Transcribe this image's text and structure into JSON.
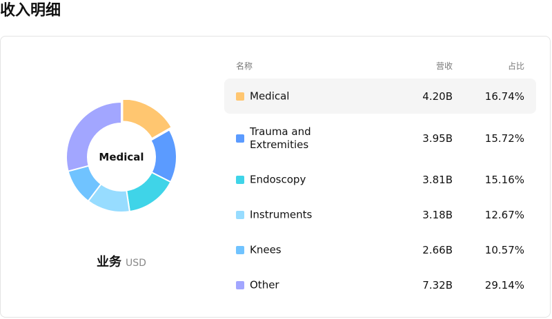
{
  "page_title": "收入明细",
  "segment": {
    "title": "业务",
    "currency": "USD",
    "selected": "Medical"
  },
  "table": {
    "headers": {
      "name": "名称",
      "revenue": "营收",
      "share": "占比"
    },
    "rows": [
      {
        "name": "Medical",
        "revenue": "4.20B",
        "share": "16.74%",
        "color": "#ffc670",
        "pct": 16.74
      },
      {
        "name": "Trauma and Extremities",
        "revenue": "3.95B",
        "share": "15.72%",
        "color": "#5b9bff",
        "pct": 15.72
      },
      {
        "name": "Endoscopy",
        "revenue": "3.81B",
        "share": "15.16%",
        "color": "#3fd4e8",
        "pct": 15.16
      },
      {
        "name": "Instruments",
        "revenue": "3.18B",
        "share": "12.67%",
        "color": "#97dcff",
        "pct": 12.67
      },
      {
        "name": "Knees",
        "revenue": "2.66B",
        "share": "10.57%",
        "color": "#70c3ff",
        "pct": 10.57
      },
      {
        "name": "Other",
        "revenue": "7.32B",
        "share": "29.14%",
        "color": "#a2a6ff",
        "pct": 29.14
      }
    ]
  }
}
